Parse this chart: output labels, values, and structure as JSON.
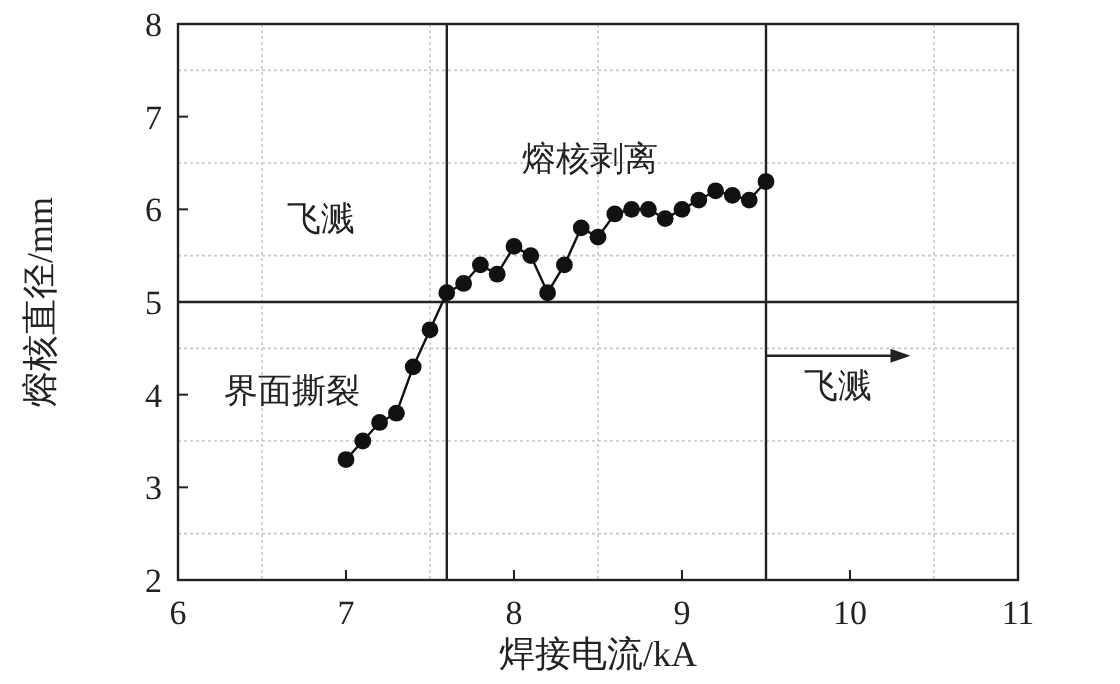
{
  "chart_data": {
    "type": "line",
    "xlabel": "焊接电流/kA",
    "ylabel": "熔核直径/mm",
    "x": [
      7.0,
      7.1,
      7.2,
      7.3,
      7.4,
      7.5,
      7.6,
      7.7,
      7.8,
      7.9,
      8.0,
      8.1,
      8.2,
      8.3,
      8.4,
      8.5,
      8.6,
      8.7,
      8.8,
      8.9,
      9.0,
      9.1,
      9.2,
      9.3,
      9.4,
      9.5
    ],
    "series": [
      {
        "color": "#111111",
        "values": [
          3.3,
          3.5,
          3.7,
          3.8,
          4.3,
          4.7,
          5.1,
          5.2,
          5.4,
          5.3,
          5.6,
          5.5,
          5.1,
          5.4,
          5.8,
          5.7,
          5.95,
          6.0,
          6.0,
          5.9,
          6.0,
          6.1,
          6.2,
          6.15,
          6.1,
          6.3
        ]
      }
    ],
    "marker": "circle",
    "line_style": "solid",
    "xlim": [
      6,
      11
    ],
    "ylim": [
      2,
      8
    ],
    "xticks": [
      6,
      {
        "value": 6.5,
        "label": null
      },
      7,
      {
        "value": 7.5,
        "label": null
      },
      8,
      {
        "value": 8.5,
        "label": null
      },
      9,
      10,
      {
        "value": 10.5,
        "label": null
      },
      11
    ],
    "yticks": [
      2,
      {
        "value": 2.5,
        "label": null
      },
      3,
      {
        "value": 3.5,
        "label": null
      },
      4,
      {
        "value": 4.5,
        "label": null
      },
      5,
      {
        "value": 5.5,
        "label": null
      },
      6,
      {
        "value": 6.5,
        "label": null
      },
      7,
      {
        "value": 7.5,
        "label": null
      },
      8
    ],
    "grid": true,
    "ref_lines": [
      {
        "axis": "x",
        "value": 7.6,
        "color": "#222222"
      },
      {
        "axis": "x",
        "value": 9.5,
        "color": "#222222"
      },
      {
        "axis": "y",
        "value": 5,
        "color": "#222222"
      }
    ],
    "annotations": [
      "飞溅",
      "熔核剥离",
      "界面撕裂",
      "飞溅"
    ]
  }
}
